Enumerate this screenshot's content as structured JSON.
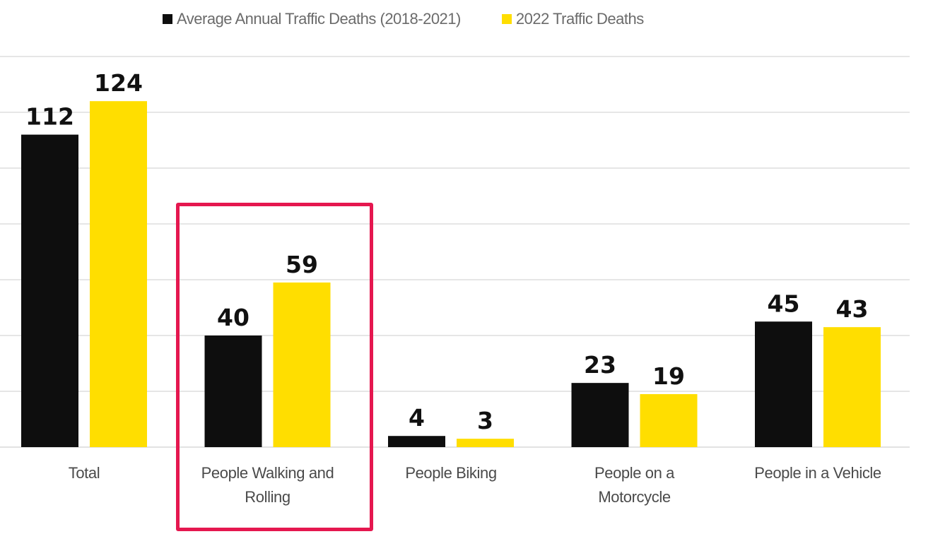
{
  "chart_data": {
    "type": "bar",
    "title": "",
    "xlabel": "",
    "ylabel": "",
    "ylim": [
      0,
      140
    ],
    "gridlines": [
      20,
      40,
      60,
      80,
      100,
      120,
      140
    ],
    "grid": true,
    "legend_position": "top-center",
    "categories": [
      [
        "Total"
      ],
      [
        "People Walking and",
        "Rolling"
      ],
      [
        "People Biking"
      ],
      [
        "People on a",
        "Motorcycle"
      ],
      [
        "People in a Vehicle"
      ]
    ],
    "series": [
      {
        "name": "Average Annual Traffic Deaths (2018-2021)",
        "color": "#0e0e0e",
        "values": [
          112,
          40,
          4,
          23,
          45
        ]
      },
      {
        "name": "2022 Traffic Deaths",
        "color": "#ffde00",
        "values": [
          124,
          59,
          3,
          19,
          43
        ]
      }
    ],
    "highlight": {
      "category_index": 1,
      "color": "#e5174f"
    }
  }
}
